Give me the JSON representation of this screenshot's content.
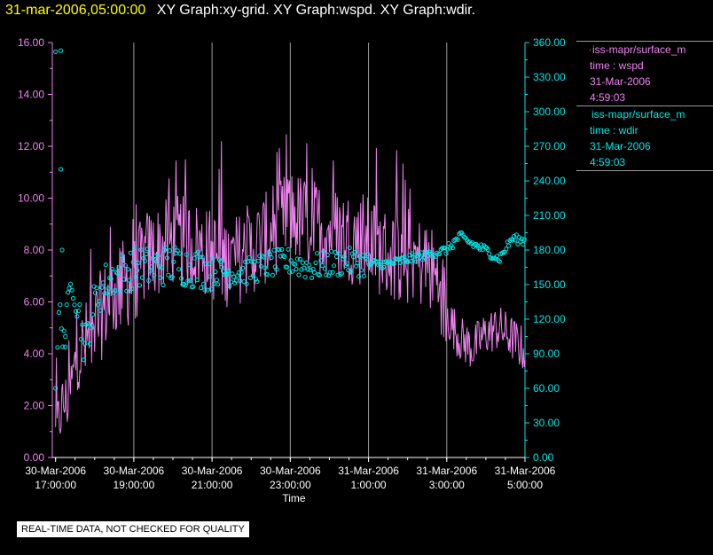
{
  "header": {
    "timestamp": "31-mar-2006,05:00:00",
    "graphs": "XY Graph:xy-grid.  XY Graph:wspd.  XY Graph:wdir."
  },
  "notice": "REAL-TIME DATA, NOT CHECKED FOR QUALITY",
  "legend": [
    {
      "marker": "line",
      "source": "iss-mapr/surface_m",
      "variable": "time : wspd",
      "date": "31-Mar-2006",
      "time": "4:59:03",
      "color": "#ee82ee"
    },
    {
      "marker": "circle",
      "source": "iss-mapr/surface_m",
      "variable": "time : wdir",
      "date": "31-Mar-2006",
      "time": "4:59:03",
      "color": "#00e5e5"
    }
  ],
  "chart_data": {
    "type": "line",
    "xlabel": "Time",
    "x_range": [
      "30-Mar-2006 16:55:00",
      "31-Mar-2006 05:00:00"
    ],
    "x_ticks": [
      {
        "date": "30-Mar-2006",
        "time": "17:00:00"
      },
      {
        "date": "30-Mar-2006",
        "time": "19:00:00"
      },
      {
        "date": "30-Mar-2006",
        "time": "21:00:00"
      },
      {
        "date": "30-Mar-2006",
        "time": "23:00:00"
      },
      {
        "date": "31-Mar-2006",
        "time": "1:00:00"
      },
      {
        "date": "31-Mar-2006",
        "time": "3:00:00"
      },
      {
        "date": "31-Mar-2006",
        "time": "5:00:00"
      }
    ],
    "y_left": {
      "range": [
        0,
        16
      ],
      "ticks": [
        "0.00",
        "2.00",
        "4.00",
        "6.00",
        "8.00",
        "10.00",
        "12.00",
        "14.00",
        "16.00"
      ],
      "color": "#ee82ee"
    },
    "y_right": {
      "range": [
        0,
        360
      ],
      "ticks": [
        "0.00",
        "30.00",
        "60.00",
        "90.00",
        "120.00",
        "150.00",
        "180.00",
        "210.00",
        "240.00",
        "270.00",
        "300.00",
        "330.00",
        "360.00"
      ],
      "color": "#00e5e5"
    },
    "grid": "vertical lines at x ticks",
    "series": [
      {
        "name": "wspd",
        "axis": "left",
        "style": "line",
        "color": "#ee82ee",
        "points": [
          [
            "30-Mar-2006 17:00",
            0.8
          ],
          [
            "30-Mar-2006 17:10",
            2.0
          ],
          [
            "30-Mar-2006 17:20",
            2.2
          ],
          [
            "30-Mar-2006 17:30",
            3.6
          ],
          [
            "30-Mar-2006 17:40",
            4.0
          ],
          [
            "30-Mar-2006 18:00",
            5.0
          ],
          [
            "30-Mar-2006 18:20",
            6.0
          ],
          [
            "30-Mar-2006 18:40",
            6.6
          ],
          [
            "30-Mar-2006 19:00",
            6.9
          ],
          [
            "30-Mar-2006 19:20",
            7.8
          ],
          [
            "30-Mar-2006 19:40",
            8.0
          ],
          [
            "30-Mar-2006 20:00",
            8.4
          ],
          [
            "30-Mar-2006 20:30",
            8.2
          ],
          [
            "30-Mar-2006 21:00",
            7.8
          ],
          [
            "30-Mar-2006 21:30",
            7.5
          ],
          [
            "30-Mar-2006 22:00",
            8.0
          ],
          [
            "30-Mar-2006 22:30",
            8.6
          ],
          [
            "30-Mar-2006 23:00",
            9.4
          ],
          [
            "30-Mar-2006 23:30",
            9.0
          ],
          [
            "31-Mar-2006 00:00",
            8.8
          ],
          [
            "31-Mar-2006 00:30",
            8.5
          ],
          [
            "31-Mar-2006 01:00",
            8.3
          ],
          [
            "31-Mar-2006 01:30",
            7.8
          ],
          [
            "31-Mar-2006 02:00",
            7.6
          ],
          [
            "31-Mar-2006 02:30",
            7.5
          ],
          [
            "31-Mar-2006 02:50",
            6.6
          ],
          [
            "31-Mar-2006 03:00",
            5.5
          ],
          [
            "31-Mar-2006 03:20",
            4.6
          ],
          [
            "31-Mar-2006 03:40",
            4.2
          ],
          [
            "31-Mar-2006 04:00",
            4.8
          ],
          [
            "31-Mar-2006 04:20",
            5.0
          ],
          [
            "31-Mar-2006 04:40",
            4.6
          ],
          [
            "31-Mar-2006 05:00",
            4.1
          ]
        ],
        "noise_amplitude": 1.8
      },
      {
        "name": "wdir",
        "axis": "right",
        "style": "circle",
        "color": "#00e5e5",
        "points": [
          [
            "30-Mar-2006 17:00",
            15
          ],
          [
            "30-Mar-2006 17:05",
            125
          ],
          [
            "30-Mar-2006 17:15",
            105
          ],
          [
            "30-Mar-2006 17:25",
            160
          ],
          [
            "30-Mar-2006 17:35",
            130
          ],
          [
            "30-Mar-2006 17:45",
            95
          ],
          [
            "30-Mar-2006 18:00",
            135
          ],
          [
            "30-Mar-2006 18:20",
            155
          ],
          [
            "30-Mar-2006 18:40",
            160
          ],
          [
            "30-Mar-2006 19:00",
            165
          ],
          [
            "30-Mar-2006 19:30",
            165
          ],
          [
            "30-Mar-2006 20:00",
            168
          ],
          [
            "30-Mar-2006 20:30",
            165
          ],
          [
            "30-Mar-2006 21:00",
            162
          ],
          [
            "30-Mar-2006 21:30",
            160
          ],
          [
            "30-Mar-2006 22:00",
            162
          ],
          [
            "30-Mar-2006 22:30",
            168
          ],
          [
            "30-Mar-2006 23:00",
            170
          ],
          [
            "30-Mar-2006 23:30",
            165
          ],
          [
            "31-Mar-2006 00:00",
            168
          ],
          [
            "31-Mar-2006 00:30",
            170
          ],
          [
            "31-Mar-2006 01:00",
            168
          ],
          [
            "31-Mar-2006 01:30",
            168
          ],
          [
            "31-Mar-2006 02:00",
            172
          ],
          [
            "31-Mar-2006 02:30",
            176
          ],
          [
            "31-Mar-2006 03:00",
            180
          ],
          [
            "31-Mar-2006 03:20",
            192
          ],
          [
            "31-Mar-2006 03:40",
            185
          ],
          [
            "31-Mar-2006 04:00",
            180
          ],
          [
            "31-Mar-2006 04:20",
            172
          ],
          [
            "31-Mar-2006 04:40",
            190
          ],
          [
            "31-Mar-2006 05:00",
            188
          ]
        ],
        "outliers": [
          [
            "30-Mar-2006 17:00",
            352
          ],
          [
            "30-Mar-2006 17:08",
            353
          ],
          [
            "30-Mar-2006 17:08",
            250
          ],
          [
            "30-Mar-2006 17:00",
            60
          ],
          [
            "30-Mar-2006 17:10",
            180
          ],
          [
            "30-Mar-2006 17:15",
            105
          ]
        ],
        "noise_amplitude": 10
      }
    ]
  }
}
